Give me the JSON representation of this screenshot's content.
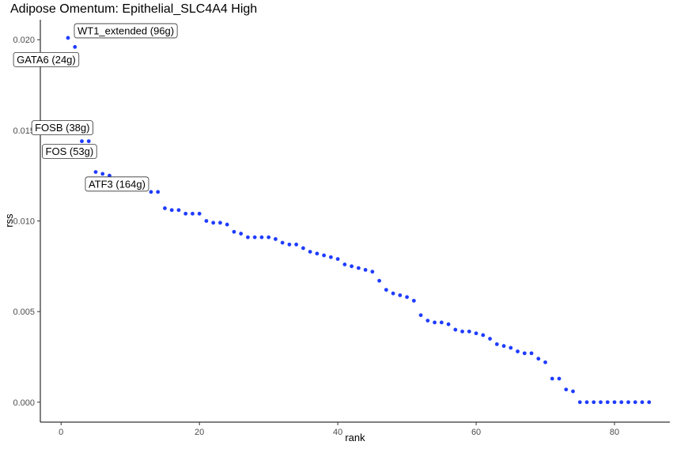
{
  "chart_data": {
    "type": "scatter",
    "title": "Adipose Omentum: Epithelial_SLC4A4 High",
    "xlabel": "rank",
    "ylabel": "rss",
    "xlim": [
      -3,
      88
    ],
    "ylim": [
      -0.0011,
      0.0211
    ],
    "xticks": [
      "0",
      "20",
      "40",
      "60",
      "80"
    ],
    "yticks": [
      "0.000",
      "0.005",
      "0.010",
      "0.015",
      "0.020"
    ],
    "grid": false,
    "point_color": "#1f3cff",
    "x": [
      1,
      2,
      3,
      4,
      5,
      6,
      7,
      8,
      9,
      10,
      11,
      12,
      13,
      14,
      15,
      16,
      17,
      18,
      19,
      20,
      21,
      22,
      23,
      24,
      25,
      26,
      27,
      28,
      29,
      30,
      31,
      32,
      33,
      34,
      35,
      36,
      37,
      38,
      39,
      40,
      41,
      42,
      43,
      44,
      45,
      46,
      47,
      48,
      49,
      50,
      51,
      52,
      53,
      54,
      55,
      56,
      57,
      58,
      59,
      60,
      61,
      62,
      63,
      64,
      65,
      66,
      67,
      68,
      69,
      70,
      71,
      72,
      73,
      74,
      75,
      76,
      77,
      78,
      79,
      80,
      81,
      82,
      83,
      84,
      85
    ],
    "y": [
      0.0201,
      0.0196,
      0.0144,
      0.0144,
      0.0127,
      0.0126,
      0.0125,
      0.0122,
      0.0121,
      0.012,
      0.0119,
      0.0118,
      0.0116,
      0.0116,
      0.0107,
      0.0106,
      0.0106,
      0.0104,
      0.0104,
      0.0104,
      0.01,
      0.0099,
      0.0099,
      0.0098,
      0.0094,
      0.0093,
      0.0091,
      0.0091,
      0.0091,
      0.0091,
      0.009,
      0.0088,
      0.0087,
      0.0087,
      0.0085,
      0.0083,
      0.0082,
      0.0081,
      0.008,
      0.0079,
      0.0076,
      0.0075,
      0.0074,
      0.0073,
      0.0072,
      0.0067,
      0.0062,
      0.006,
      0.0059,
      0.0058,
      0.0056,
      0.0048,
      0.0045,
      0.0044,
      0.0044,
      0.0043,
      0.004,
      0.0039,
      0.0039,
      0.0038,
      0.0037,
      0.0035,
      0.0032,
      0.0031,
      0.003,
      0.0028,
      0.0027,
      0.0027,
      0.0024,
      0.0022,
      0.0013,
      0.0013,
      0.0007,
      0.0006,
      0,
      0,
      0,
      0,
      0,
      0,
      0,
      0,
      0,
      0,
      0
    ],
    "annotations": [
      {
        "label": "WT1_extended (96g)",
        "x": 1,
        "y": 0.0201,
        "side": "right"
      },
      {
        "label": "GATA6 (24g)",
        "x": 2,
        "y": 0.0196,
        "side": "left"
      },
      {
        "label": "FOSB (38g)",
        "x": 3,
        "y": 0.0144,
        "side": "above"
      },
      {
        "label": "FOS (53g)",
        "x": 4,
        "y": 0.0144,
        "side": "below"
      },
      {
        "label": "ATF3 (164g)",
        "x": 13,
        "y": 0.0116,
        "side": "left"
      }
    ]
  }
}
